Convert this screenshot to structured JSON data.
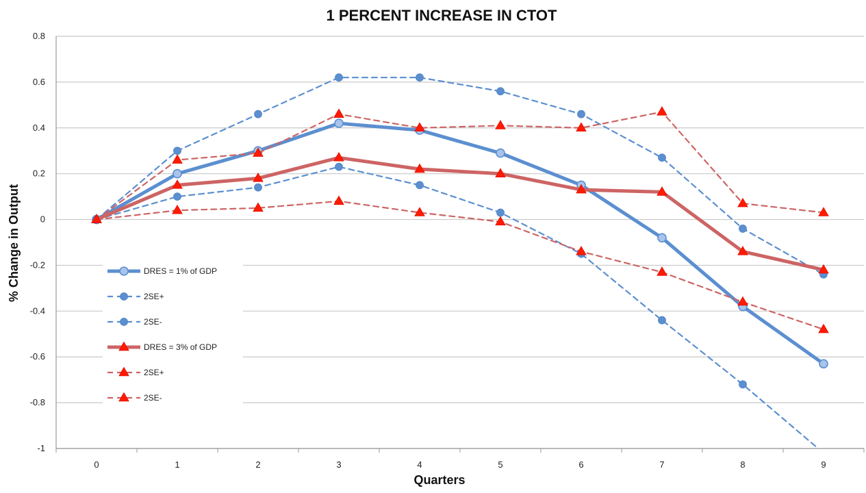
{
  "chart_data": {
    "type": "line",
    "title": "1 PERCENT INCREASE IN CTOT",
    "xlabel": "Quarters",
    "ylabel": "% Change in Output",
    "x": [
      0,
      1,
      2,
      3,
      4,
      5,
      6,
      7,
      8,
      9
    ],
    "xlim": [
      -0.5,
      9.5
    ],
    "ylim": [
      -1,
      0.8
    ],
    "yticks": [
      -1,
      -0.8,
      -0.6,
      -0.4,
      -0.2,
      0,
      0.2,
      0.4,
      0.6,
      0.8
    ],
    "ytick_labels": [
      "-1",
      "-0.8",
      "-0.6",
      "-0.4",
      "-0.2",
      "0",
      "0.2",
      "0.4",
      "0.6",
      "0.8"
    ],
    "xtick_labels": [
      "0",
      "1",
      "2",
      "3",
      "4",
      "5",
      "6",
      "7",
      "8",
      "9"
    ],
    "grid": "horizontal",
    "legend_position": "left-lower",
    "series": [
      {
        "name": "DRES = 1% of GDP",
        "color": "#5b8fd0",
        "style": "solid",
        "marker": "circle-open",
        "values": [
          0,
          0.2,
          0.3,
          0.42,
          0.39,
          0.29,
          0.15,
          -0.08,
          -0.38,
          -0.63
        ]
      },
      {
        "name": "2SE+",
        "color": "#5b8fd0",
        "style": "dashed",
        "marker": "circle",
        "values": [
          0,
          0.3,
          0.46,
          0.62,
          0.62,
          0.56,
          0.46,
          0.27,
          -0.04,
          -0.24
        ]
      },
      {
        "name": "2SE-",
        "color": "#5b8fd0",
        "style": "dashed",
        "marker": "circle",
        "values": [
          0,
          0.1,
          0.14,
          0.23,
          0.15,
          0.03,
          -0.15,
          -0.44,
          -0.72,
          -1.02
        ]
      },
      {
        "name": "DRES = 3% of GDP",
        "color": "#cd6464",
        "style": "solid",
        "marker": "triangle",
        "values": [
          0,
          0.15,
          0.18,
          0.27,
          0.22,
          0.2,
          0.13,
          0.12,
          -0.14,
          -0.22
        ]
      },
      {
        "name": "2SE+",
        "color": "#cd6464",
        "style": "dashed",
        "marker": "triangle",
        "values": [
          0,
          0.26,
          0.29,
          0.46,
          0.4,
          0.41,
          0.4,
          0.47,
          0.07,
          0.03
        ]
      },
      {
        "name": "2SE-",
        "color": "#cd6464",
        "style": "dashed",
        "marker": "triangle",
        "values": [
          0,
          0.04,
          0.05,
          0.08,
          0.03,
          -0.01,
          -0.14,
          -0.23,
          -0.36,
          -0.48
        ]
      }
    ]
  }
}
